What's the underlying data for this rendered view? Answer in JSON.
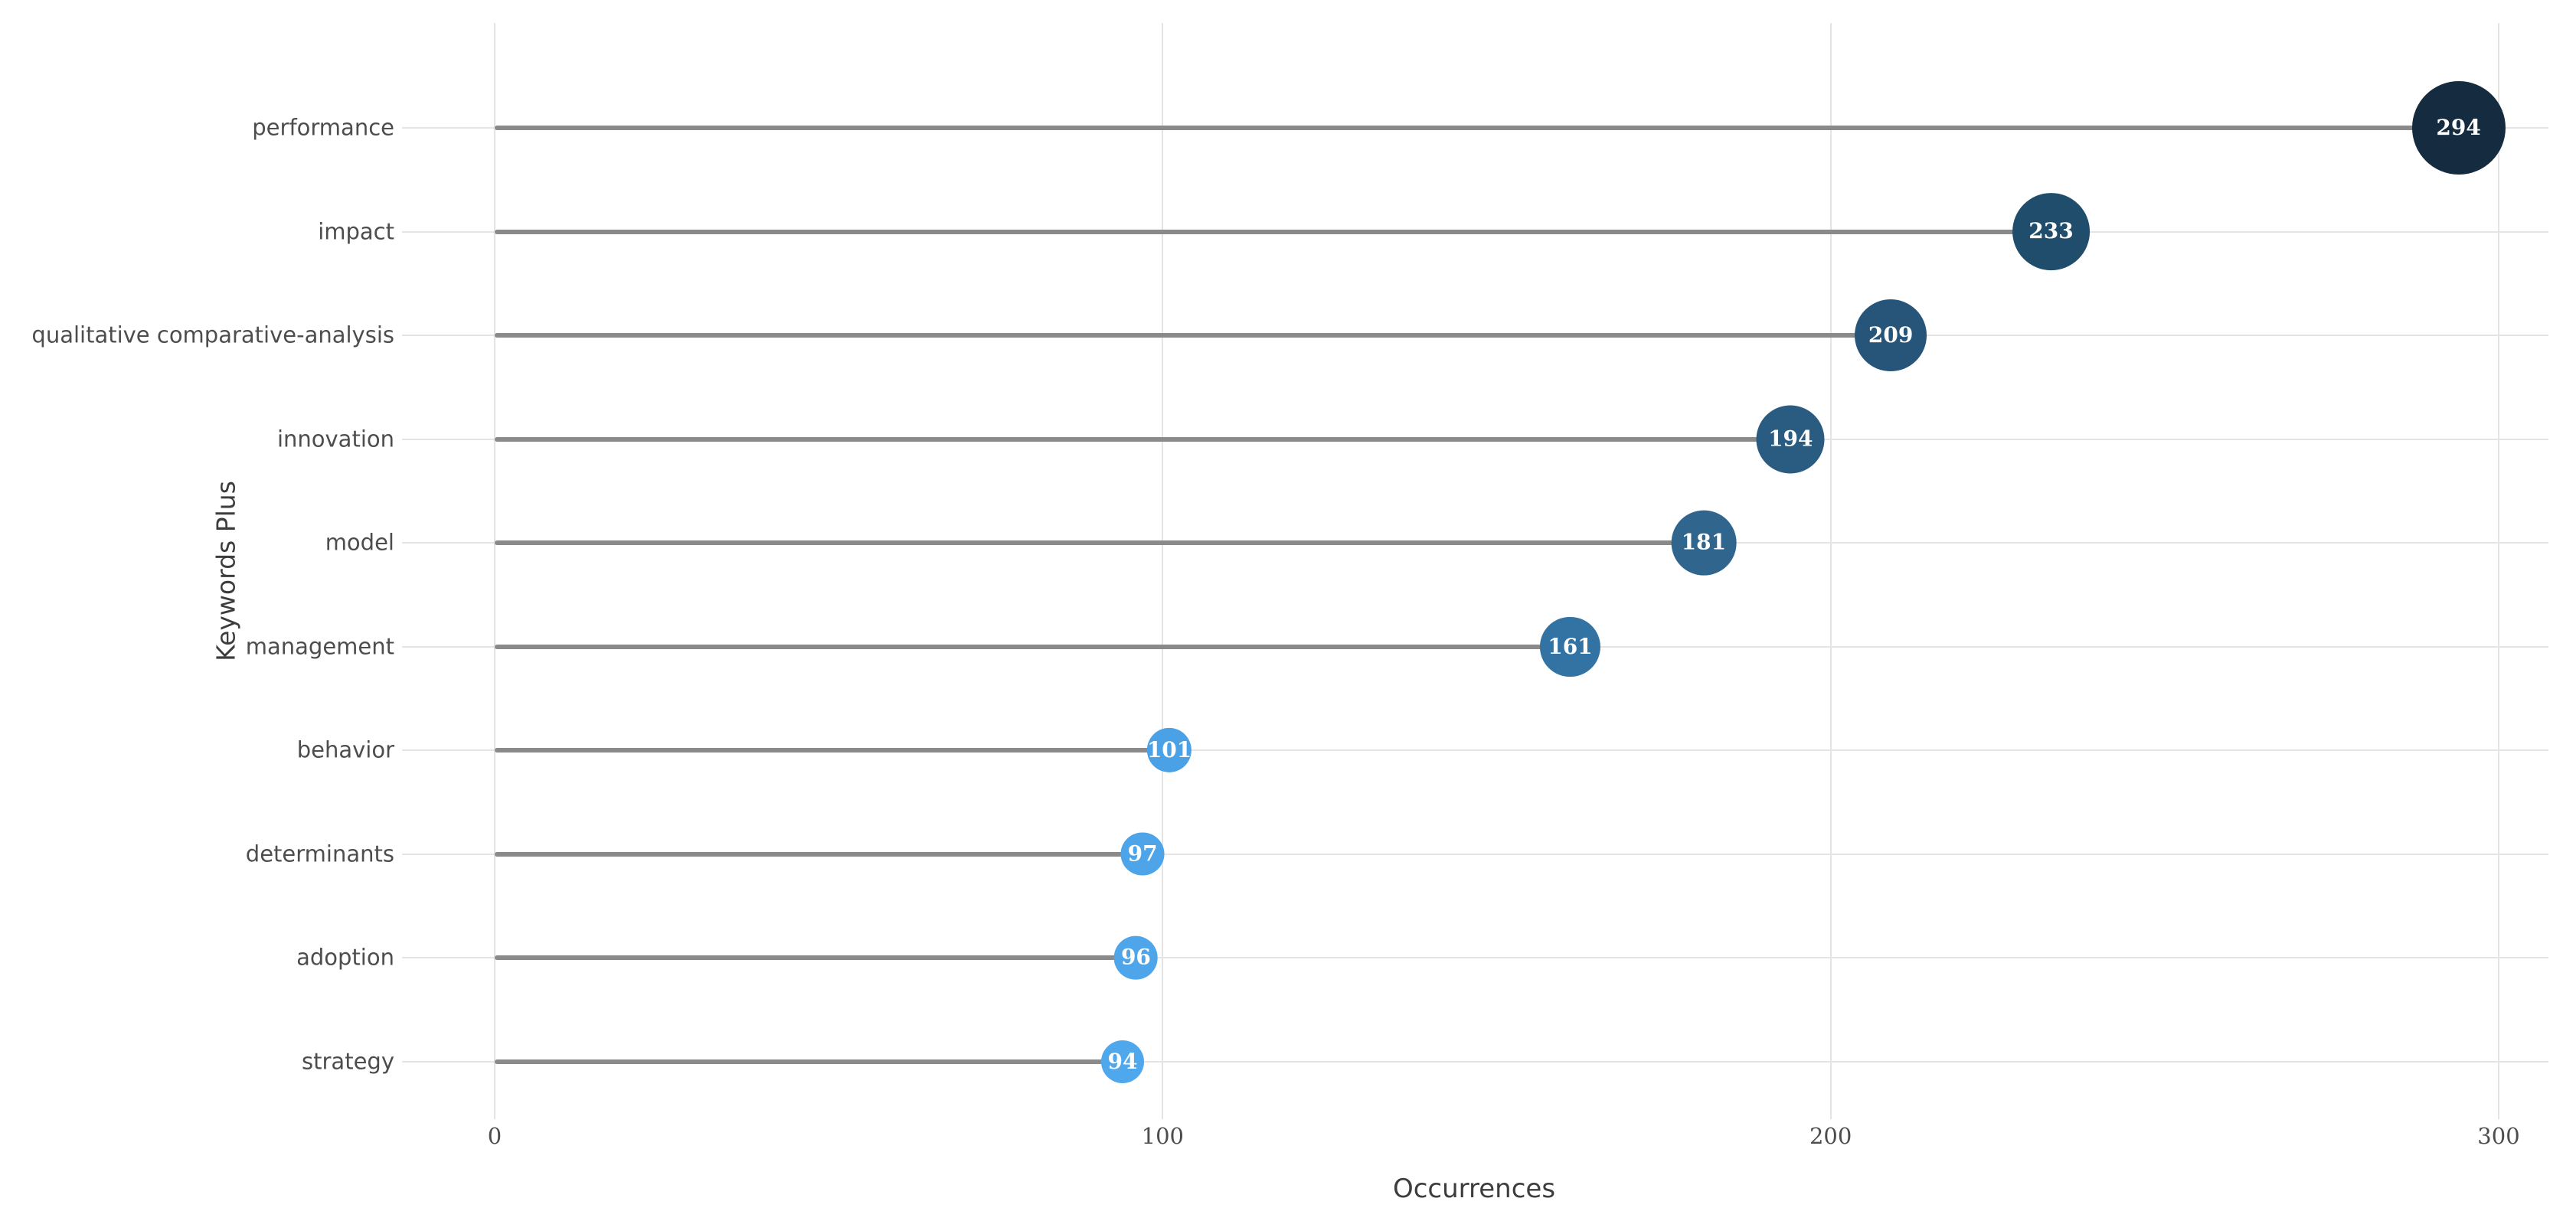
{
  "chart_data": {
    "type": "scatter",
    "variant": "horizontal-lollipop",
    "title": "",
    "xlabel": "Occurrences",
    "ylabel": "Keywords Plus",
    "categories": [
      "performance",
      "impact",
      "qualitative comparative-analysis",
      "innovation",
      "model",
      "management",
      "behavior",
      "determinants",
      "adoption",
      "strategy"
    ],
    "values": [
      294,
      233,
      209,
      194,
      181,
      161,
      101,
      97,
      96,
      94
    ],
    "point_colors": [
      "#152b40",
      "#204d6c",
      "#265579",
      "#2a5c82",
      "#30668e",
      "#3273a4",
      "#4ba1e6",
      "#4da4e8",
      "#4ea5ea",
      "#4fa7ec"
    ],
    "x_ticks": [
      0,
      100,
      200,
      300
    ],
    "xlim": [
      -15,
      308
    ],
    "grid": true,
    "legend": "none",
    "stem_color": "#8a8a8a",
    "grid_color": "#e4e4e4",
    "axis_text_color": "#4d4d4d",
    "value_label_color": "#ffffff",
    "background_color": "#ffffff"
  }
}
